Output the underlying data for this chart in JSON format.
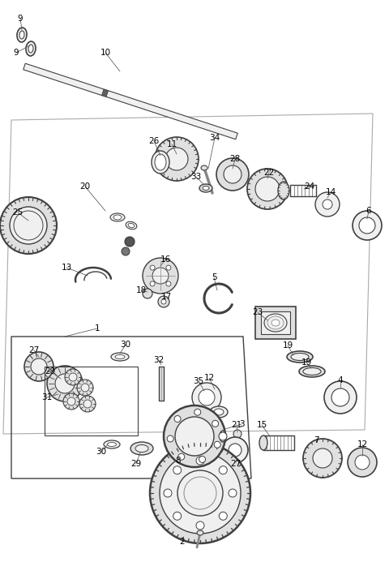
{
  "bg_color": "#ffffff",
  "line_color": "#404040",
  "figsize": [
    4.8,
    6.93
  ],
  "dpi": 100
}
